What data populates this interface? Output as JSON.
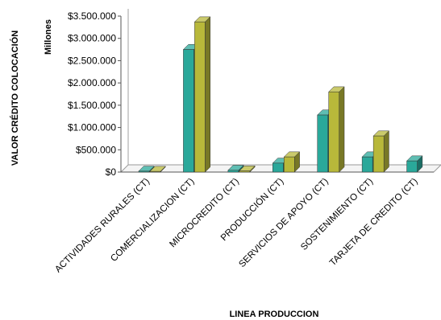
{
  "chart_data": {
    "type": "bar",
    "title": "",
    "xlabel": "LINEA PRODUCCION",
    "ylabel": "VALOR CRÉDITO COLOCACIÓN",
    "ylabel_units": "Millones",
    "ylim": [
      0,
      3500000
    ],
    "yticks": [
      0,
      500000,
      1000000,
      1500000,
      2000000,
      2500000,
      3000000,
      3500000
    ],
    "ytick_labels": [
      "$0",
      "$500.000",
      "$1.000.000",
      "$1.500.000",
      "$2.000.000",
      "$2.500.000",
      "$3.000.000",
      "$3.500.000"
    ],
    "categories": [
      "ACTIVIDADES RURALES (CT)",
      "COMERCIALIZACION (CT)",
      "MICROCREDITO (CT)",
      "PRODUCCIÓN (CT)",
      "SERVICIOS DE APOYO (CT)",
      "SOSTENIMIENTO (CT)",
      "TARJETA DE CREDITO (CT)"
    ],
    "series": [
      {
        "color": "#2aa89a",
        "values": [
          20000,
          2750000,
          40000,
          200000,
          1280000,
          340000,
          250000
        ]
      },
      {
        "color": "#b8b83a",
        "values": [
          15000,
          3370000,
          25000,
          340000,
          1800000,
          810000,
          null
        ]
      }
    ],
    "grid": false,
    "legend": "none"
  }
}
